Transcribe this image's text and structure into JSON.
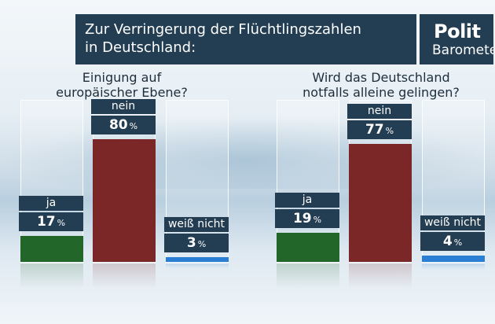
{
  "header": {
    "title_line1": "Zur Verringerung der Flüchtlingszahlen",
    "title_line2": "in Deutschland:",
    "logo_line1": "Polit",
    "logo_line2": "Barometer"
  },
  "colors": {
    "ja": "#236629",
    "nein": "#7c2727",
    "weiss_nicht": "#2a7fd4",
    "label_bg": "#233d52"
  },
  "chart_data": [
    {
      "type": "bar",
      "title_line1": "Einigung auf",
      "title_line2": "europäischer Ebene?",
      "categories": [
        "ja",
        "nein",
        "weiß nicht"
      ],
      "values": [
        17,
        80,
        3
      ],
      "unit": "%",
      "ylim": [
        0,
        100
      ]
    },
    {
      "type": "bar",
      "title_line1": "Wird das Deutschland",
      "title_line2": "notfalls alleine gelingen?",
      "categories": [
        "ja",
        "nein",
        "weiß nicht"
      ],
      "values": [
        19,
        77,
        4
      ],
      "unit": "%",
      "ylim": [
        0,
        100
      ]
    }
  ]
}
